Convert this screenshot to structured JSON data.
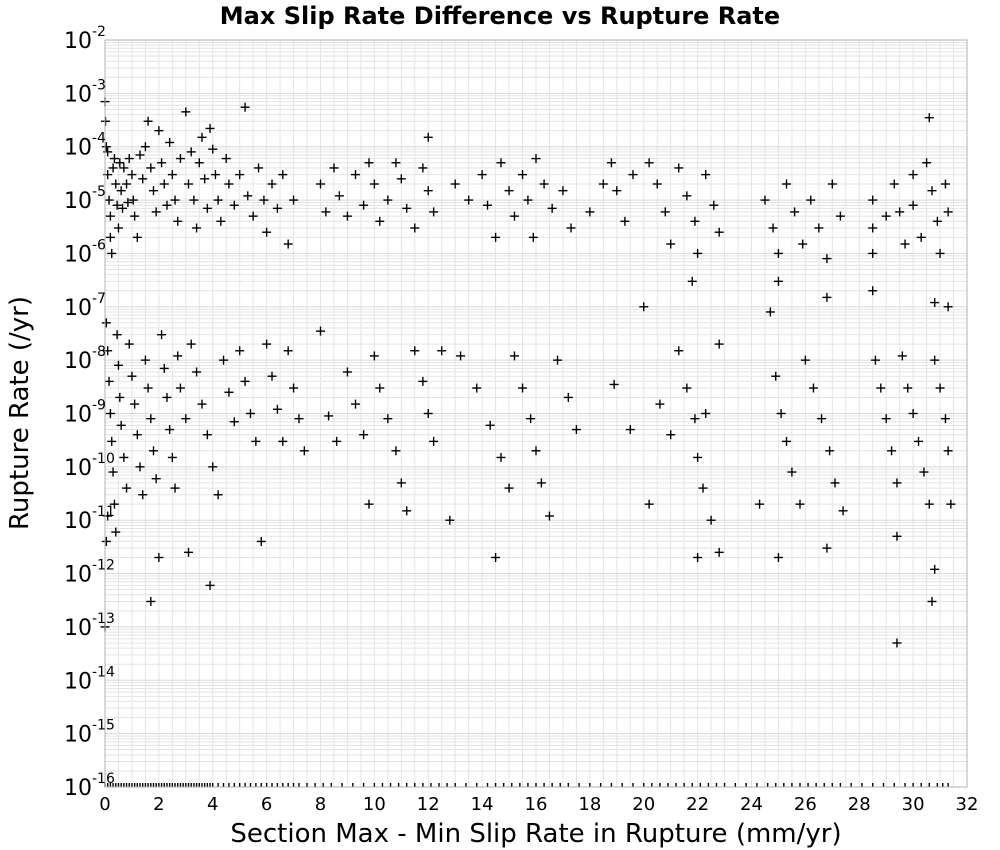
{
  "chart_data": {
    "type": "scatter",
    "title": "Max Slip Rate Difference vs Rupture Rate",
    "xlabel": "Section Max - Min Slip Rate in Rupture (mm/yr)",
    "ylabel": "Rupture Rate (/yr)",
    "xlim": [
      0,
      32
    ],
    "ylim": [
      1e-16,
      0.01
    ],
    "yscale": "log",
    "grid": true,
    "marker": "plus",
    "marker_color": "#000000",
    "x_ticks": [
      "0",
      "2",
      "4",
      "6",
      "8",
      "10",
      "12",
      "14",
      "16",
      "18",
      "20",
      "22",
      "24",
      "26",
      "28",
      "30",
      "32"
    ],
    "y_ticks": [
      {
        "base": "10",
        "exp": "-2"
      },
      {
        "base": "10",
        "exp": "-3"
      },
      {
        "base": "10",
        "exp": "-4"
      },
      {
        "base": "10",
        "exp": "-5"
      },
      {
        "base": "10",
        "exp": "-6"
      },
      {
        "base": "10",
        "exp": "-7"
      },
      {
        "base": "10",
        "exp": "-8"
      },
      {
        "base": "10",
        "exp": "-9"
      },
      {
        "base": "10",
        "exp": "-10"
      },
      {
        "base": "10",
        "exp": "-11"
      },
      {
        "base": "10",
        "exp": "-12"
      },
      {
        "base": "10",
        "exp": "-13"
      },
      {
        "base": "10",
        "exp": "-14"
      },
      {
        "base": "10",
        "exp": "-15"
      },
      {
        "base": "10",
        "exp": "-16"
      }
    ],
    "points": [
      [
        0.0,
        0.0007
      ],
      [
        0.02,
        0.0003
      ],
      [
        0.05,
        0.0001
      ],
      [
        0.1,
        8e-05
      ],
      [
        0.1,
        3e-05
      ],
      [
        0.15,
        1e-05
      ],
      [
        0.2,
        5e-06
      ],
      [
        0.2,
        2e-06
      ],
      [
        0.25,
        1e-06
      ],
      [
        0.3,
        4e-05
      ],
      [
        0.35,
        6e-05
      ],
      [
        0.4,
        2e-05
      ],
      [
        0.45,
        8e-06
      ],
      [
        0.5,
        3e-06
      ],
      [
        0.55,
        5e-05
      ],
      [
        0.6,
        1.5e-05
      ],
      [
        0.65,
        7e-06
      ],
      [
        0.7,
        4e-05
      ],
      [
        0.8,
        2e-05
      ],
      [
        0.85,
        9e-06
      ],
      [
        0.9,
        6e-05
      ],
      [
        1.0,
        3e-05
      ],
      [
        1.05,
        1e-05
      ],
      [
        1.1,
        5e-06
      ],
      [
        1.2,
        2e-06
      ],
      [
        1.3,
        7e-05
      ],
      [
        1.4,
        2.5e-05
      ],
      [
        1.5,
        0.0001
      ],
      [
        1.6,
        0.0003
      ],
      [
        1.7,
        4e-05
      ],
      [
        1.8,
        1.5e-05
      ],
      [
        1.9,
        6e-06
      ],
      [
        2.0,
        0.0002
      ],
      [
        2.1,
        5e-05
      ],
      [
        2.2,
        2e-05
      ],
      [
        2.3,
        8e-06
      ],
      [
        2.4,
        0.00012
      ],
      [
        2.5,
        3e-05
      ],
      [
        2.6,
        1e-05
      ],
      [
        2.7,
        4e-06
      ],
      [
        2.8,
        6e-05
      ],
      [
        3.0,
        0.00045
      ],
      [
        3.1,
        2e-05
      ],
      [
        3.2,
        8e-05
      ],
      [
        3.3,
        1e-05
      ],
      [
        3.4,
        3e-06
      ],
      [
        3.5,
        5e-05
      ],
      [
        3.6,
        0.00015
      ],
      [
        3.7,
        2.5e-05
      ],
      [
        3.8,
        7e-06
      ],
      [
        3.9,
        0.00022
      ],
      [
        4.0,
        9e-05
      ],
      [
        4.1,
        3e-05
      ],
      [
        4.2,
        1e-05
      ],
      [
        4.3,
        4e-06
      ],
      [
        4.5,
        6e-05
      ],
      [
        4.6,
        2e-05
      ],
      [
        4.8,
        8e-06
      ],
      [
        5.0,
        3e-05
      ],
      [
        5.2,
        0.00055
      ],
      [
        5.3,
        1.2e-05
      ],
      [
        5.5,
        5e-06
      ],
      [
        5.7,
        4e-05
      ],
      [
        5.9,
        1e-05
      ],
      [
        6.0,
        2.5e-06
      ],
      [
        6.2,
        2e-05
      ],
      [
        6.4,
        7e-06
      ],
      [
        6.6,
        3e-05
      ],
      [
        6.8,
        1.5e-06
      ],
      [
        7.0,
        1e-05
      ],
      [
        0.05,
        5e-08
      ],
      [
        0.1,
        1.5e-08
      ],
      [
        0.15,
        4e-09
      ],
      [
        0.2,
        1e-09
      ],
      [
        0.25,
        3e-10
      ],
      [
        0.3,
        8e-11
      ],
      [
        0.35,
        2e-11
      ],
      [
        0.4,
        6e-12
      ],
      [
        0.45,
        3e-08
      ],
      [
        0.5,
        8e-09
      ],
      [
        0.55,
        2e-09
      ],
      [
        0.6,
        6e-10
      ],
      [
        0.7,
        1.5e-10
      ],
      [
        0.8,
        4e-11
      ],
      [
        0.9,
        2e-08
      ],
      [
        1.0,
        5e-09
      ],
      [
        1.1,
        1.5e-09
      ],
      [
        1.2,
        4e-10
      ],
      [
        1.3,
        1e-10
      ],
      [
        1.4,
        3e-11
      ],
      [
        1.5,
        1e-08
      ],
      [
        1.6,
        3e-09
      ],
      [
        1.7,
        8e-10
      ],
      [
        1.8,
        2e-10
      ],
      [
        1.9,
        6e-11
      ],
      [
        2.0,
        2e-12
      ],
      [
        2.1,
        3e-08
      ],
      [
        2.2,
        7e-09
      ],
      [
        2.3,
        2e-09
      ],
      [
        2.4,
        5e-10
      ],
      [
        2.5,
        1.5e-10
      ],
      [
        2.6,
        4e-11
      ],
      [
        2.7,
        1.2e-08
      ],
      [
        2.8,
        3e-09
      ],
      [
        3.0,
        8e-10
      ],
      [
        3.1,
        2.5e-12
      ],
      [
        3.2,
        2e-08
      ],
      [
        3.4,
        6e-09
      ],
      [
        3.6,
        1.5e-09
      ],
      [
        3.8,
        4e-10
      ],
      [
        3.9,
        6e-13
      ],
      [
        4.0,
        1e-10
      ],
      [
        4.2,
        3e-11
      ],
      [
        4.4,
        1e-08
      ],
      [
        4.6,
        2.5e-09
      ],
      [
        4.8,
        7e-10
      ],
      [
        5.0,
        1.5e-08
      ],
      [
        5.2,
        4e-09
      ],
      [
        5.4,
        1e-09
      ],
      [
        5.6,
        3e-10
      ],
      [
        5.8,
        4e-12
      ],
      [
        6.0,
        2e-08
      ],
      [
        6.2,
        5e-09
      ],
      [
        6.4,
        1.2e-09
      ],
      [
        6.6,
        3e-10
      ],
      [
        6.8,
        1.5e-08
      ],
      [
        7.0,
        3e-09
      ],
      [
        7.2,
        8e-10
      ],
      [
        7.4,
        2e-10
      ],
      [
        1.7,
        3e-13
      ],
      [
        0.0,
        1e-13
      ],
      [
        0.05,
        4e-12
      ],
      [
        0.1,
        1.2e-11
      ],
      [
        8.0,
        2e-05
      ],
      [
        8.2,
        6e-06
      ],
      [
        8.5,
        4e-05
      ],
      [
        8.7,
        1.2e-05
      ],
      [
        9.0,
        5e-06
      ],
      [
        9.3,
        3e-05
      ],
      [
        9.6,
        8e-06
      ],
      [
        9.8,
        5e-05
      ],
      [
        10.0,
        2e-05
      ],
      [
        10.2,
        4e-06
      ],
      [
        10.5,
        1e-05
      ],
      [
        10.8,
        5e-05
      ],
      [
        11.0,
        2.5e-05
      ],
      [
        11.2,
        7e-06
      ],
      [
        11.5,
        3e-06
      ],
      [
        11.8,
        4e-05
      ],
      [
        12.0,
        1.5e-05
      ],
      [
        12.0,
        0.00015
      ],
      [
        12.2,
        6e-06
      ],
      [
        8.0,
        3.5e-08
      ],
      [
        8.3,
        9e-10
      ],
      [
        8.6,
        3e-10
      ],
      [
        9.0,
        6e-09
      ],
      [
        9.3,
        1.5e-09
      ],
      [
        9.6,
        4e-10
      ],
      [
        9.8,
        2e-11
      ],
      [
        10.0,
        1.2e-08
      ],
      [
        10.2,
        3e-09
      ],
      [
        10.5,
        8e-10
      ],
      [
        10.8,
        2e-10
      ],
      [
        11.0,
        5e-11
      ],
      [
        11.2,
        1.5e-11
      ],
      [
        11.5,
        1.5e-08
      ],
      [
        11.8,
        4e-09
      ],
      [
        12.0,
        1e-09
      ],
      [
        12.2,
        3e-10
      ],
      [
        12.5,
        1.5e-08
      ],
      [
        12.8,
        1e-11
      ],
      [
        13.0,
        2e-05
      ],
      [
        13.5,
        1e-05
      ],
      [
        14.0,
        3e-05
      ],
      [
        14.2,
        8e-06
      ],
      [
        14.5,
        2e-06
      ],
      [
        14.7,
        5e-05
      ],
      [
        15.0,
        1.5e-05
      ],
      [
        15.2,
        5e-06
      ],
      [
        15.5,
        3e-05
      ],
      [
        15.7,
        1e-05
      ],
      [
        15.9,
        2e-06
      ],
      [
        16.0,
        6e-05
      ],
      [
        16.3,
        2e-05
      ],
      [
        16.6,
        7e-06
      ],
      [
        17.0,
        1.5e-05
      ],
      [
        17.3,
        3e-06
      ],
      [
        13.2,
        1.2e-08
      ],
      [
        13.8,
        3e-09
      ],
      [
        14.3,
        6e-10
      ],
      [
        14.5,
        2e-12
      ],
      [
        14.7,
        1.5e-10
      ],
      [
        15.0,
        4e-11
      ],
      [
        15.2,
        1.2e-08
      ],
      [
        15.5,
        3e-09
      ],
      [
        15.8,
        8e-10
      ],
      [
        16.0,
        2e-10
      ],
      [
        16.2,
        5e-11
      ],
      [
        16.5,
        1.2e-11
      ],
      [
        16.8,
        1e-08
      ],
      [
        17.2,
        2e-09
      ],
      [
        17.5,
        5e-10
      ],
      [
        18.0,
        6e-06
      ],
      [
        18.5,
        2e-05
      ],
      [
        18.8,
        5e-05
      ],
      [
        19.0,
        1.5e-05
      ],
      [
        19.3,
        4e-06
      ],
      [
        19.6,
        3e-05
      ],
      [
        18.9,
        3.5e-09
      ],
      [
        19.5,
        5e-10
      ],
      [
        20.0,
        1e-07
      ],
      [
        20.2,
        5e-05
      ],
      [
        20.5,
        2e-05
      ],
      [
        20.8,
        6e-06
      ],
      [
        21.0,
        1.5e-06
      ],
      [
        21.3,
        4e-05
      ],
      [
        21.6,
        1.2e-05
      ],
      [
        21.9,
        4e-06
      ],
      [
        22.0,
        1e-06
      ],
      [
        22.3,
        3e-05
      ],
      [
        22.6,
        8e-06
      ],
      [
        22.8,
        2.5e-06
      ],
      [
        20.2,
        2e-11
      ],
      [
        20.6,
        1.5e-09
      ],
      [
        21.0,
        4e-10
      ],
      [
        21.3,
        1.5e-08
      ],
      [
        21.6,
        3e-09
      ],
      [
        21.9,
        8e-10
      ],
      [
        22.0,
        1.5e-10
      ],
      [
        22.0,
        2e-12
      ],
      [
        22.2,
        4e-11
      ],
      [
        22.5,
        1e-11
      ],
      [
        22.8,
        2e-08
      ],
      [
        22.8,
        2.5e-12
      ],
      [
        22.3,
        1e-09
      ],
      [
        21.8,
        3e-07
      ],
      [
        24.5,
        1e-05
      ],
      [
        24.8,
        3e-06
      ],
      [
        25.0,
        1e-06
      ],
      [
        25.0,
        3e-07
      ],
      [
        25.3,
        2e-05
      ],
      [
        25.6,
        6e-06
      ],
      [
        25.9,
        1.5e-06
      ],
      [
        26.2,
        1e-05
      ],
      [
        26.5,
        3e-06
      ],
      [
        26.8,
        8e-07
      ],
      [
        27.0,
        2e-05
      ],
      [
        27.3,
        5e-06
      ],
      [
        26.8,
        1.5e-07
      ],
      [
        24.3,
        2e-11
      ],
      [
        24.7,
        8e-08
      ],
      [
        24.9,
        5e-09
      ],
      [
        25.1,
        1e-09
      ],
      [
        25.3,
        3e-10
      ],
      [
        25.5,
        8e-11
      ],
      [
        25.8,
        2e-11
      ],
      [
        26.0,
        1e-08
      ],
      [
        26.3,
        3e-09
      ],
      [
        26.6,
        8e-10
      ],
      [
        26.9,
        2e-10
      ],
      [
        27.1,
        5e-11
      ],
      [
        27.4,
        1.5e-11
      ],
      [
        26.8,
        3e-12
      ],
      [
        25.0,
        2e-12
      ],
      [
        28.5,
        1e-05
      ],
      [
        28.5,
        3e-06
      ],
      [
        28.5,
        1e-06
      ],
      [
        28.5,
        2e-07
      ],
      [
        29.0,
        5e-06
      ],
      [
        29.3,
        2e-05
      ],
      [
        29.5,
        6e-06
      ],
      [
        29.7,
        1.5e-06
      ],
      [
        30.0,
        3e-05
      ],
      [
        30.0,
        8e-06
      ],
      [
        30.3,
        2e-06
      ],
      [
        30.5,
        5e-05
      ],
      [
        30.7,
        1.5e-05
      ],
      [
        30.9,
        4e-06
      ],
      [
        31.0,
        1e-06
      ],
      [
        31.2,
        2e-05
      ],
      [
        31.3,
        6e-06
      ],
      [
        30.6,
        0.00035
      ],
      [
        30.8,
        1.2e-07
      ],
      [
        31.3,
        1e-07
      ],
      [
        28.6,
        1e-08
      ],
      [
        28.8,
        3e-09
      ],
      [
        29.0,
        8e-10
      ],
      [
        29.2,
        2e-10
      ],
      [
        29.4,
        5e-11
      ],
      [
        29.4,
        5e-12
      ],
      [
        29.6,
        1.2e-08
      ],
      [
        29.8,
        3e-09
      ],
      [
        30.0,
        1e-09
      ],
      [
        30.2,
        3e-10
      ],
      [
        30.4,
        8e-11
      ],
      [
        30.6,
        2e-11
      ],
      [
        30.8,
        1e-08
      ],
      [
        31.0,
        3e-09
      ],
      [
        31.2,
        8e-10
      ],
      [
        31.3,
        2e-10
      ],
      [
        30.8,
        1.2e-12
      ],
      [
        30.7,
        3e-13
      ],
      [
        29.4,
        5e-14
      ],
      [
        31.4,
        2e-11
      ]
    ],
    "zero_rate_x": [
      0.0,
      0.1,
      0.2,
      0.3,
      0.4,
      0.5,
      0.6,
      0.7,
      0.8,
      0.9,
      1.0,
      1.1,
      1.2,
      1.3,
      1.4,
      1.5,
      1.6,
      1.7,
      1.8,
      1.9,
      2.0,
      2.1,
      2.2,
      2.3,
      2.4,
      2.5,
      2.6,
      2.7,
      2.8,
      2.9,
      3.0,
      3.1,
      3.2,
      3.3,
      3.4,
      3.5,
      3.6,
      3.7,
      3.8,
      3.9,
      4.0,
      4.2,
      4.4,
      4.6,
      4.8,
      5.0,
      5.2,
      5.4,
      5.6,
      5.8,
      6.0,
      6.2,
      6.4,
      6.6,
      6.8,
      7.0,
      7.2,
      7.5,
      7.8,
      8.1,
      8.4,
      8.8,
      9.2,
      9.6,
      10.0,
      10.3,
      10.6,
      10.9,
      11.2,
      11.5,
      11.8,
      12.1,
      12.4,
      12.7,
      13.0,
      13.4,
      13.8,
      14.2,
      14.5,
      14.8,
      15.1,
      15.4,
      15.7,
      16.0,
      16.3,
      16.6,
      16.9,
      17.2,
      17.6,
      18.0,
      18.4,
      18.8,
      19.2,
      19.6,
      20.0,
      20.3,
      20.6,
      20.9,
      21.2,
      21.5,
      21.8,
      22.1,
      22.4,
      22.7,
      23.0,
      23.4,
      23.8,
      24.2,
      24.6,
      24.9,
      25.2,
      25.5,
      25.8,
      26.1,
      26.4,
      26.7,
      27.0,
      27.3,
      27.7,
      28.1,
      28.5,
      28.9,
      29.3,
      29.7,
      30.0,
      30.3,
      30.6,
      30.9,
      31.1,
      31.3
    ]
  }
}
